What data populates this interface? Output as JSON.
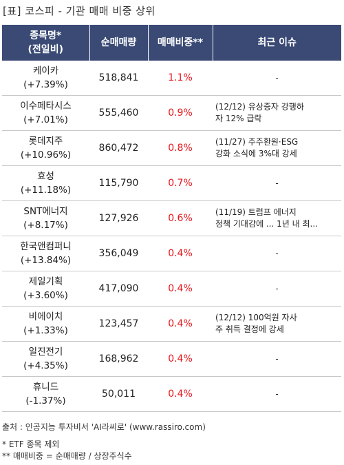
{
  "title": "[표] 코스피 - 기관 매매 비중 상위",
  "columns": [
    "종목명*\n(전일비)",
    "순매매량",
    "매매비중**",
    "최근 이슈"
  ],
  "rows": [
    {
      "name": "케이카",
      "change": "(+7.39%)",
      "volume": "518,841",
      "ratio": "1.1%",
      "issue": "-"
    },
    {
      "name": "이수페타시스",
      "change": "(+7.01%)",
      "volume": "555,460",
      "ratio": "0.9%",
      "issue": "(12/12) 유상증자 강행하\n자 12% 급락"
    },
    {
      "name": "롯데지주",
      "change": "(+10.96%)",
      "volume": "860,472",
      "ratio": "0.8%",
      "issue": "(11/27) 주주환원·ESG\n 강화 소식에 3%대 강세"
    },
    {
      "name": "효성",
      "change": "(+11.18%)",
      "volume": "115,790",
      "ratio": "0.7%",
      "issue": "-"
    },
    {
      "name": "SNT에너지",
      "change": "(+8.17%)",
      "volume": "127,926",
      "ratio": "0.6%",
      "issue": "(11/19) 트럼프 에너지\n정책 기대감에 ... 1년 내 최..."
    },
    {
      "name": "한국앤컴퍼니",
      "change": "(+13.84%)",
      "volume": "356,049",
      "ratio": "0.4%",
      "issue": "-"
    },
    {
      "name": "제일기획",
      "change": "(+3.60%)",
      "volume": "417,090",
      "ratio": "0.4%",
      "issue": "-"
    },
    {
      "name": "비에이치",
      "change": "(+1.33%)",
      "volume": "123,457",
      "ratio": "0.4%",
      "issue": "(12/12) 100억원 자사\n주 취득 결정에 강세"
    },
    {
      "name": "일진전기",
      "change": "(+4.35%)",
      "volume": "168,962",
      "ratio": "0.4%",
      "issue": "-"
    },
    {
      "name": "휴니드",
      "change": "(-1.37%)",
      "volume": "50,011",
      "ratio": "0.4%",
      "issue": "-"
    }
  ],
  "footer": {
    "source": "출처 : 인공지능 투자비서 'AI라씨로' (www.rassiro.com)",
    "note1": "* ETF 종목 제외",
    "note2": "** 매매비중 = 순매매량 / 상장주식수"
  },
  "colors": {
    "header_bg": "#3a4a75",
    "ratio_text": "#e8141a"
  }
}
